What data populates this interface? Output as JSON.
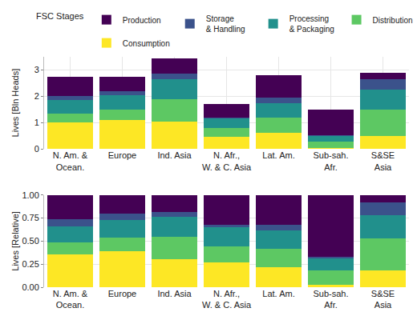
{
  "chart_data": [
    {
      "type": "bar",
      "stacked": true,
      "grid": true,
      "legend": "top",
      "legend_title": "FSC Stages",
      "y_label": "Lives [Bln Heads]",
      "categories": [
        "N. Am. &\nOcean.",
        "Europe",
        "Ind. Asia",
        "N. Afr.,\nW. & C. Asia",
        "Lat. Am.",
        "Sub-sah.\nAfr.",
        "S&SE\nAsia"
      ],
      "ylim": [
        0,
        3.5
      ],
      "yticks": [
        0,
        1,
        2,
        3
      ],
      "series": [
        {
          "name": "Consumption",
          "color": "#fde725",
          "values": [
            1.0,
            1.1,
            1.05,
            0.45,
            0.62,
            0.05,
            0.5
          ]
        },
        {
          "name": "Distribution",
          "color": "#5dc863",
          "values": [
            0.35,
            0.4,
            0.85,
            0.35,
            0.58,
            0.23,
            1.0
          ]
        },
        {
          "name": "Processing\n& Packaging",
          "color": "#21908c",
          "values": [
            0.5,
            0.55,
            0.75,
            0.35,
            0.55,
            0.2,
            0.75
          ]
        },
        {
          "name": "Storage\n& Handling",
          "color": "#3b528b",
          "values": [
            0.15,
            0.15,
            0.2,
            0.05,
            0.2,
            0.04,
            0.4
          ]
        },
        {
          "name": "Production",
          "color": "#440154",
          "values": [
            0.75,
            0.55,
            0.6,
            0.5,
            0.85,
            0.98,
            0.25
          ]
        }
      ]
    },
    {
      "type": "bar",
      "stacked": true,
      "grid": true,
      "y_label": "Lives [Relative]",
      "categories": [
        "N. Am. &\nOcean.",
        "Europe",
        "Ind. Asia",
        "N. Afr.,\nW. & C. Asia",
        "Lat. Am.",
        "Sub-sah.\nAfr.",
        "S&SE\nAsia"
      ],
      "ylim": [
        0,
        1
      ],
      "yticks": [
        {
          "value": 0,
          "label": "0.00"
        },
        {
          "value": 0.25,
          "label": "0.25"
        },
        {
          "value": 0.5,
          "label": "0.50"
        },
        {
          "value": 0.75,
          "label": "0.75"
        },
        {
          "value": 1,
          "label": "1.00"
        }
      ],
      "series": [
        {
          "name": "Consumption",
          "color": "#fde725",
          "values": [
            0.36,
            0.39,
            0.3,
            0.27,
            0.22,
            0.03,
            0.18
          ]
        },
        {
          "name": "Distribution",
          "color": "#5dc863",
          "values": [
            0.13,
            0.15,
            0.25,
            0.17,
            0.2,
            0.15,
            0.35
          ]
        },
        {
          "name": "Processing\n& Packaging",
          "color": "#21908c",
          "values": [
            0.17,
            0.19,
            0.21,
            0.21,
            0.2,
            0.13,
            0.25
          ]
        },
        {
          "name": "Storage\n& Handling",
          "color": "#3b528b",
          "values": [
            0.08,
            0.07,
            0.06,
            0.03,
            0.06,
            0.02,
            0.14
          ]
        },
        {
          "name": "Production",
          "color": "#440154",
          "values": [
            0.26,
            0.2,
            0.18,
            0.32,
            0.32,
            0.67,
            0.08
          ]
        }
      ]
    }
  ]
}
